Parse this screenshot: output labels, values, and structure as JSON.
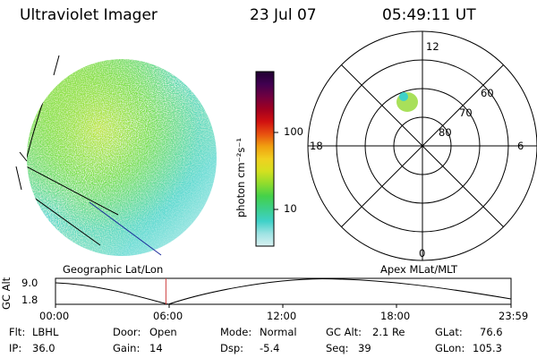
{
  "header": {
    "instrument": "Ultraviolet Imager",
    "date": "23 Jul 07",
    "time": "05:49:11 UT"
  },
  "colors": {
    "disk_green": "#7be04a",
    "disk_yellow": "#c8e63c",
    "disk_cyan": "#59d9cf",
    "disk_pale": "#cdeff0",
    "blob": "#a8e05a",
    "timeline_marker": "#d04040"
  },
  "colorbar": {
    "unit_label": "photon cm⁻²s⁻¹",
    "ticks": [
      "100",
      "10"
    ],
    "colors": [
      "#d9f1f2",
      "#9fe3e3",
      "#3fd1c8",
      "#3ccf8a",
      "#44d14a",
      "#8fdc2e",
      "#d4e020",
      "#f0d020",
      "#f0a010",
      "#e85010",
      "#d01010",
      "#a00020",
      "#700040",
      "#400050",
      "#200030"
    ]
  },
  "polar": {
    "mlt_labels": {
      "top": "12",
      "right": "6",
      "bottom": "0",
      "left": "18"
    },
    "lat_labels": [
      "60",
      "70",
      "80"
    ]
  },
  "map_labels": {
    "left": "Geographic Lat/Lon",
    "right": "Apex MLat/MLT"
  },
  "timeline": {
    "axis_label": "GC Alt",
    "y_ticks": [
      "9.0",
      "1.8"
    ],
    "x_ticks": [
      "00:00",
      "06:00",
      "12:00",
      "18:00",
      "23:59"
    ],
    "current_time_fraction": 0.2425
  },
  "info": {
    "flt_label": "Flt:",
    "flt_value": "LBHL",
    "ip_label": "IP:",
    "ip_value": "36.0",
    "door_label": "Door:",
    "door_value": "Open",
    "gain_label": "Gain:",
    "gain_value": "14",
    "mode_label": "Mode:",
    "mode_value": "Normal",
    "dsp_label": "Dsp:",
    "dsp_value": "-5.4",
    "gcalt_label": "GC Alt:",
    "gcalt_value": "2.1 Re",
    "seq_label": "Seq:",
    "seq_value": "39",
    "glat_label": "GLat:",
    "glat_value": "76.6",
    "glon_label": "GLon:",
    "glon_value": "105.3"
  }
}
